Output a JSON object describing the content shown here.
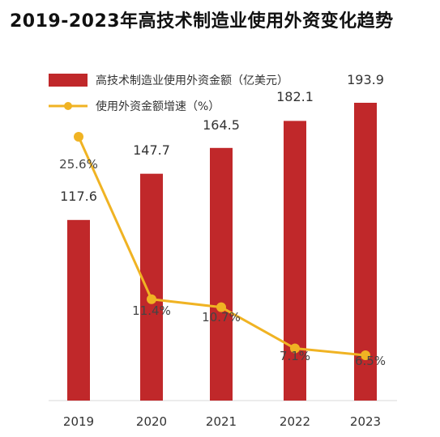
{
  "title": "2019-2023年高技术制造业使用外资变化趋势",
  "colors": {
    "bar": "#c0282a",
    "line": "#f0b323",
    "text": "#333333"
  },
  "chart_data": {
    "type": "bar",
    "title": "2019-2023年高技术制造业使用外资变化趋势",
    "categories": [
      "2019",
      "2020",
      "2021",
      "2022",
      "2023"
    ],
    "series": [
      {
        "name": "高技术制造业使用外资金额（亿美元）",
        "type": "bar",
        "values": [
          117.6,
          147.7,
          164.5,
          182.1,
          193.9
        ],
        "labels": [
          "117.6",
          "147.7",
          "164.5",
          "182.1",
          "193.9"
        ]
      },
      {
        "name": "使用外资金额增速（%）",
        "type": "line",
        "values": [
          25.6,
          11.4,
          10.7,
          7.1,
          6.5
        ],
        "labels": [
          "25.6%",
          "11.4%",
          "10.7%",
          "7.1%",
          "6.5%"
        ]
      }
    ],
    "legend": "top-left",
    "grid": false
  }
}
